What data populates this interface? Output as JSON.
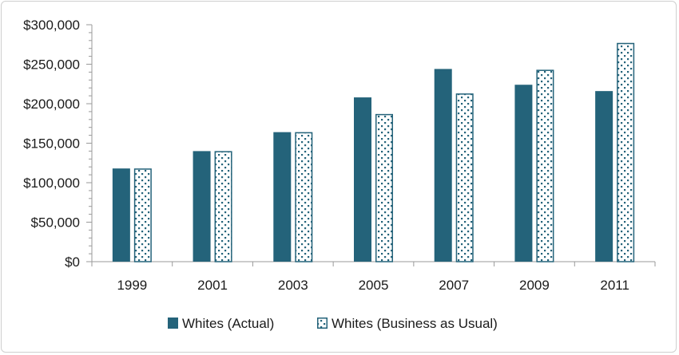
{
  "chart_data": {
    "type": "bar",
    "title": "",
    "xlabel": "",
    "ylabel": "",
    "categories": [
      "1999",
      "2001",
      "2003",
      "2005",
      "2007",
      "2009",
      "2011"
    ],
    "series": [
      {
        "name": "Whites (Actual)",
        "values": [
          118000,
          140000,
          164000,
          208000,
          244000,
          224000,
          216000
        ],
        "color": "#24637a",
        "style": "solid"
      },
      {
        "name": "Whites (Business as Usual)",
        "values": [
          118000,
          140000,
          164000,
          187000,
          213000,
          243000,
          277000
        ],
        "color": "#24637a",
        "style": "dotted-pattern"
      }
    ],
    "ylim": [
      0,
      300000
    ],
    "yticks": [
      0,
      50000,
      100000,
      150000,
      200000,
      250000,
      300000
    ],
    "ytick_labels": [
      "$0",
      "$50,000",
      "$100,000",
      "$150,000",
      "$200,000",
      "$250,000",
      "$300,000"
    ],
    "legend_position": "bottom-center",
    "grid": false
  }
}
